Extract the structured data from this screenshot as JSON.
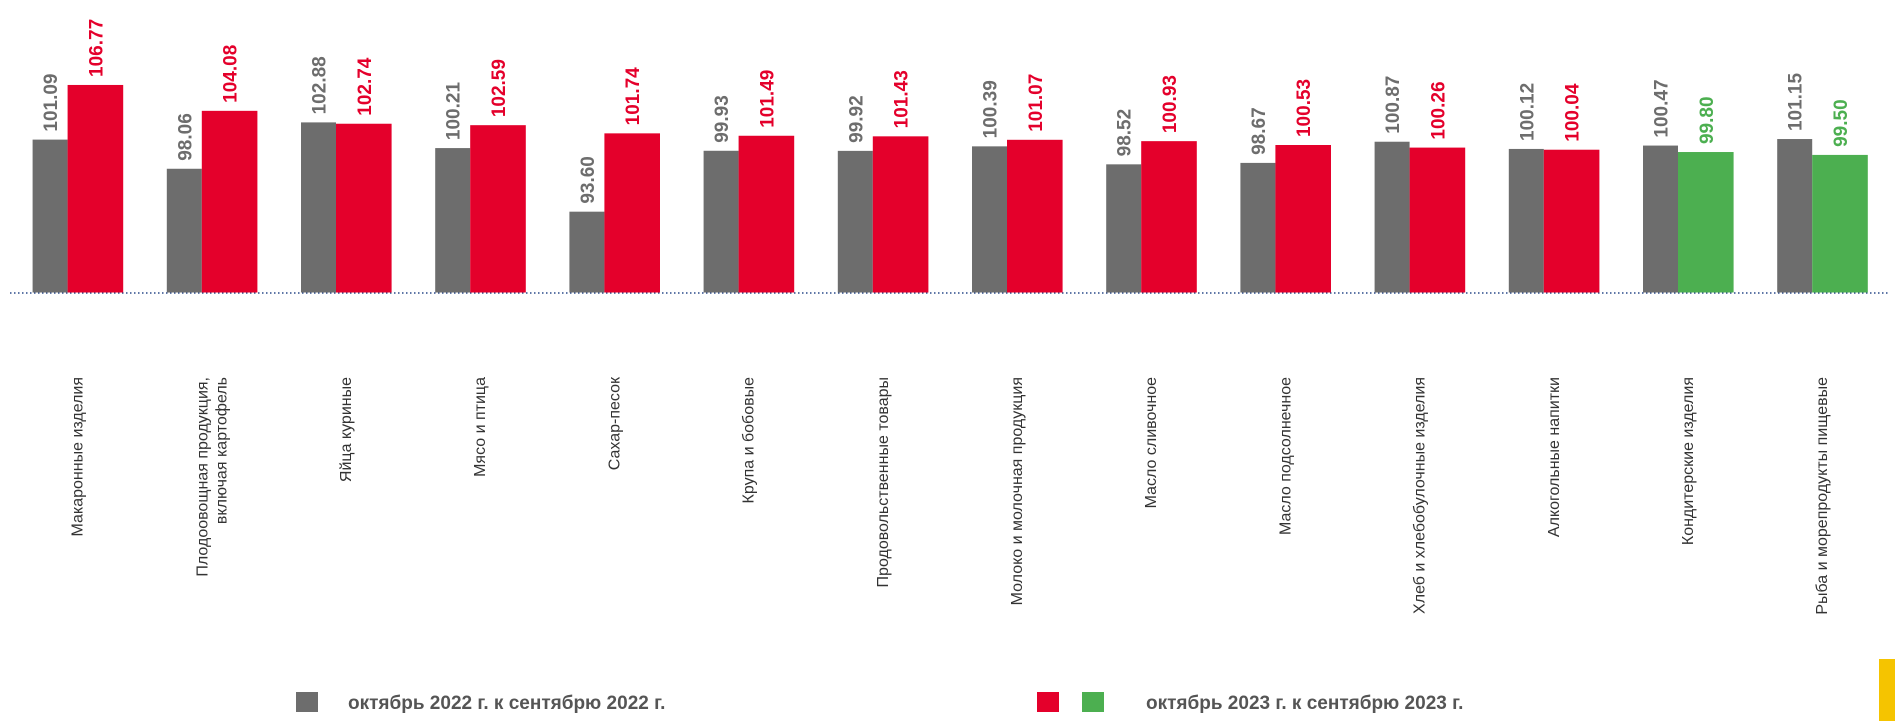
{
  "chart_data": {
    "type": "bar",
    "categories": [
      "Макаронные изделия",
      [
        "Плодоовощная продукция,",
        "включая картофель"
      ],
      "Яйца куриные",
      "Мясо и птица",
      "Сахар-песок",
      "Крупа и бобовые",
      "Продовольственные товары",
      "Молоко и молочная продукция",
      "Масло сливочное",
      "Масло подсолнечное",
      "Хлеб и хлебобулочные изделия",
      "Алкогольные напитки",
      "Кондитерские изделия",
      "Рыба и морепродукты пищевые"
    ],
    "series": [
      {
        "name": "октябрь 2022 г. к сентябрю 2022 г.",
        "color": "#6d6d6d",
        "values": [
          101.09,
          98.06,
          102.88,
          100.21,
          93.6,
          99.93,
          99.92,
          100.39,
          98.52,
          98.67,
          100.87,
          100.12,
          100.47,
          101.15
        ],
        "value_labels": [
          "101.09",
          "98.06",
          "102.88",
          "100.21",
          "93.60",
          "99.93",
          "99.92",
          "100.39",
          "98.52",
          "98.67",
          "100.87",
          "100.12",
          "100.47",
          "101.15"
        ]
      },
      {
        "name": "октябрь 2023 г. к сентябрю 2023 г.",
        "colors": [
          "#e4002b",
          "#e4002b",
          "#e4002b",
          "#e4002b",
          "#e4002b",
          "#e4002b",
          "#e4002b",
          "#e4002b",
          "#e4002b",
          "#e4002b",
          "#e4002b",
          "#e4002b",
          "#4caf50",
          "#4caf50"
        ],
        "values": [
          106.77,
          104.08,
          102.74,
          102.59,
          101.74,
          101.49,
          101.43,
          101.07,
          100.93,
          100.53,
          100.26,
          100.04,
          99.8,
          99.5
        ],
        "value_labels": [
          "106.77",
          "104.08",
          "102.74",
          "102.59",
          "101.74",
          "101.49",
          "101.43",
          "101.07",
          "100.93",
          "100.53",
          "100.26",
          "100.04",
          "99.80",
          "99.50"
        ]
      }
    ],
    "ylim": [
      85.2,
      115.6
    ]
  }
}
